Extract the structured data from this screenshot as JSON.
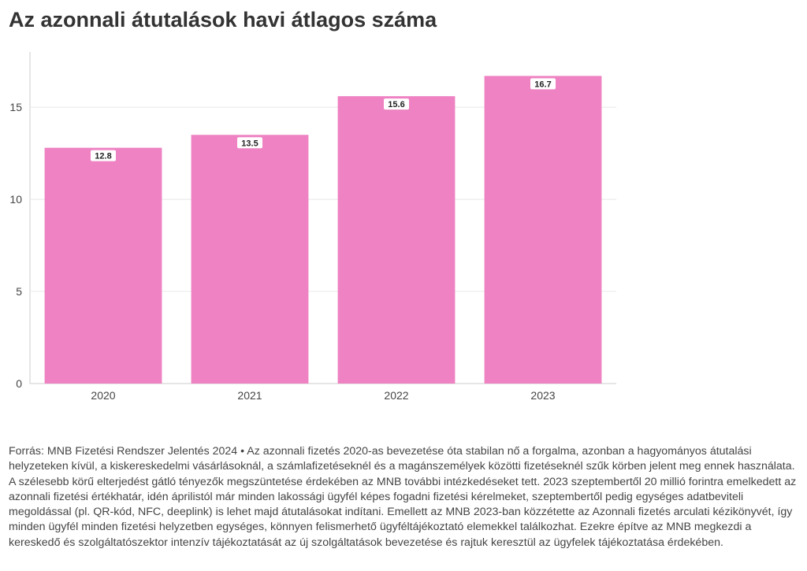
{
  "title": "Az azonnali átutalások havi átlagos száma",
  "colors": {
    "bar": "#ee82c2",
    "grid": "#e8e8e8",
    "axis": "#cccccc",
    "label_bg": "#ffffff"
  },
  "chart_data": {
    "type": "bar",
    "title": "Az azonnali átutalások havi átlagos száma",
    "categories": [
      "2020",
      "2021",
      "2022",
      "2023"
    ],
    "values": [
      12.8,
      13.5,
      15.6,
      16.7
    ],
    "data_labels": [
      "12.8",
      "13.5",
      "15.6",
      "16.7"
    ],
    "yticks": [
      0,
      5,
      10,
      15
    ],
    "ylim": [
      0,
      18
    ],
    "xlabel": "",
    "ylabel": "",
    "grid": true,
    "legend": "none"
  },
  "footer": {
    "text": "Forrás: MNB Fizetési Rendszer Jelentés 2024 • Az azonnali fizetés 2020-as bevezetése óta stabilan nő a forgalma, azonban a hagyományos átutalási helyzeteken kívül, a kiskereskedelmi vásárlásoknál, a számlafizetéseknél és a magánszemélyek közötti fizetéseknél szűk körben jelent meg ennek használata. A szélesebb körű elterjedést gátló tényezők megszüntetése érdekében az MNB további intézkedéseket tett. 2023 szeptembertől 20 millió forintra emelkedett az azonnali fizetési értékhatár, idén áprilistól már minden lakossági ügyfél képes fogadni fizetési kérelmeket, szeptembertől pedig egységes adatbeviteli megoldással (pl. QR-kód, NFC, deeplink) is lehet majd átutalásokat indítani. Emellett az MNB 2023-ban közzétette az Azonnali fizetés arculati kézikönyvét, így minden ügyfél minden fizetési helyzetben egységes, könnyen felismerhető ügyféltájékoztató elemekkel találkozhat. Ezekre építve az MNB megkezdi a kereskedő és szolgáltatószektor intenzív tájékoztatását az új szolgáltatások bevezetése és rajtuk keresztül az ügyfelek tájékoztatása érdekében."
  }
}
